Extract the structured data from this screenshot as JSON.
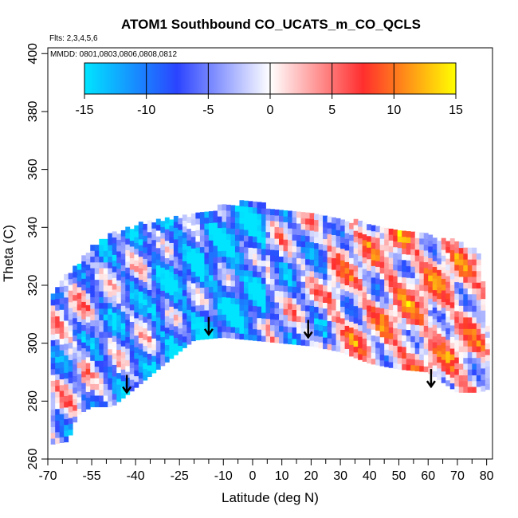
{
  "chart_data": {
    "type": "heatmap",
    "title": "ATOM1 Southbound CO_UCATS_m_CO_QCLS",
    "flights_label": "Flts: 2,3,4,5,6",
    "dates_label": "MMDD: 0801,0803,0806,0808,0812",
    "xlabel": "Latitude (deg N)",
    "ylabel": "Theta (C)",
    "xlim": [
      -70,
      82
    ],
    "ylim": [
      260,
      402
    ],
    "x_ticks_labeled": [
      -70,
      -55,
      -40,
      -25,
      -10,
      0,
      10,
      20,
      30,
      40,
      50,
      60,
      70,
      80
    ],
    "x_ticks_minor": [
      -65,
      -60,
      -50,
      -45,
      -35,
      -30,
      -20,
      -15,
      -5,
      5,
      15,
      25,
      35,
      45,
      55,
      65,
      75
    ],
    "y_ticks": [
      260,
      280,
      300,
      320,
      340,
      360,
      380,
      400
    ],
    "colorbar": {
      "min": -15,
      "max": 15,
      "ticks": [
        -15,
        -10,
        -5,
        0,
        5,
        10,
        15
      ],
      "colors": [
        "#00e5ff",
        "#2b44ff",
        "#ffffff",
        "#ff2e2e",
        "#ffff00"
      ]
    },
    "arrows": [
      {
        "lat": -43,
        "theta": 283
      },
      {
        "lat": -15,
        "theta": 303
      },
      {
        "lat": 19,
        "theta": 302
      },
      {
        "lat": 61,
        "theta": 285
      }
    ],
    "data_region": {
      "upper_boundary": [
        [
          -69,
          316
        ],
        [
          -66,
          320
        ],
        [
          -60,
          326
        ],
        [
          -55,
          333
        ],
        [
          -45,
          338
        ],
        [
          -35,
          341
        ],
        [
          -25,
          343
        ],
        [
          -15,
          344
        ],
        [
          -10,
          347
        ],
        [
          0,
          348
        ],
        [
          10,
          345
        ],
        [
          20,
          343
        ],
        [
          30,
          342
        ],
        [
          40,
          340
        ],
        [
          50,
          338
        ],
        [
          60,
          336
        ],
        [
          70,
          334
        ],
        [
          78,
          330
        ],
        [
          80,
          306
        ]
      ],
      "lower_boundary": [
        [
          80,
          284
        ],
        [
          78,
          283
        ],
        [
          70,
          283
        ],
        [
          60,
          290
        ],
        [
          50,
          291
        ],
        [
          40,
          293
        ],
        [
          30,
          297
        ],
        [
          20,
          299
        ],
        [
          10,
          300
        ],
        [
          0,
          301
        ],
        [
          -10,
          302
        ],
        [
          -20,
          301
        ],
        [
          -25,
          297
        ],
        [
          -43,
          282
        ],
        [
          -48,
          278
        ],
        [
          -55,
          278
        ],
        [
          -60,
          275
        ],
        [
          -63,
          266
        ],
        [
          -69,
          265
        ]
      ],
      "regions": [
        {
          "lat_range": [
            -70,
            -55
          ],
          "theta_range": [
            275,
            300
          ],
          "mean": -3
        },
        {
          "lat_range": [
            -55,
            -35
          ],
          "theta_range": [
            285,
            340
          ],
          "mean": -6
        },
        {
          "lat_range": [
            -35,
            -15
          ],
          "theta_range": [
            290,
            340
          ],
          "mean": -9
        },
        {
          "lat_range": [
            -15,
            5
          ],
          "theta_range": [
            300,
            348
          ],
          "mean": -10
        },
        {
          "lat_range": [
            5,
            25
          ],
          "theta_range": [
            300,
            345
          ],
          "mean": -4
        },
        {
          "lat_range": [
            25,
            45
          ],
          "theta_range": [
            295,
            340
          ],
          "mean": 1
        },
        {
          "lat_range": [
            45,
            65
          ],
          "theta_range": [
            288,
            336
          ],
          "mean": 3
        },
        {
          "lat_range": [
            65,
            80
          ],
          "theta_range": [
            283,
            332
          ],
          "mean": 2
        }
      ]
    }
  }
}
